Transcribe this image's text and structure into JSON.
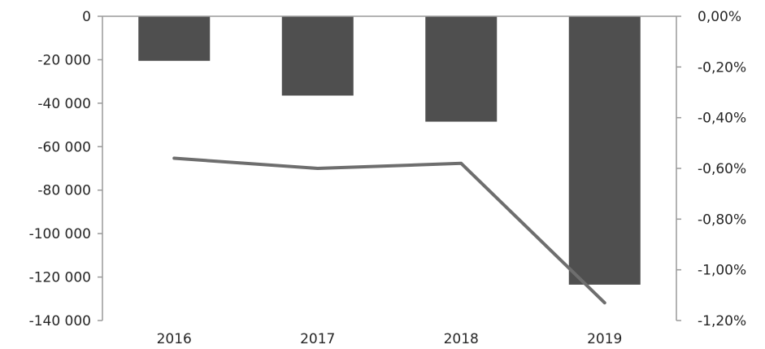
{
  "chart_data": {
    "type": "bar",
    "categories": [
      "2016",
      "2017",
      "2018",
      "2019"
    ],
    "series": [
      {
        "type": "bar",
        "axis": "left",
        "values": [
          -20500,
          -36500,
          -48500,
          -123500
        ],
        "color": "#4f4f4f"
      },
      {
        "type": "line",
        "axis": "right",
        "values": [
          -0.56,
          -0.6,
          -0.58,
          -1.13
        ],
        "color": "#6e6e6e"
      }
    ],
    "y_left": {
      "min": -140000,
      "max": 0,
      "ticks": [
        0,
        -20000,
        -40000,
        -60000,
        -80000,
        -100000,
        -120000,
        -140000
      ],
      "tick_labels": [
        "0",
        "-20 000",
        "-40 000",
        "-60 000",
        "-80 000",
        "-100 000",
        "-120 000",
        "-140 000"
      ]
    },
    "y_right": {
      "min": -1.2,
      "max": 0,
      "ticks": [
        0,
        -0.2,
        -0.4,
        -0.6,
        -0.8,
        -1.0,
        -1.2
      ],
      "tick_labels": [
        "0,00%",
        "-0,20%",
        "-0,40%",
        "-0,60%",
        "-0,80%",
        "-1,00%",
        "-1,20%"
      ]
    },
    "title": "",
    "xlabel": "",
    "ylabel": "",
    "grid": false,
    "legend": "none"
  }
}
